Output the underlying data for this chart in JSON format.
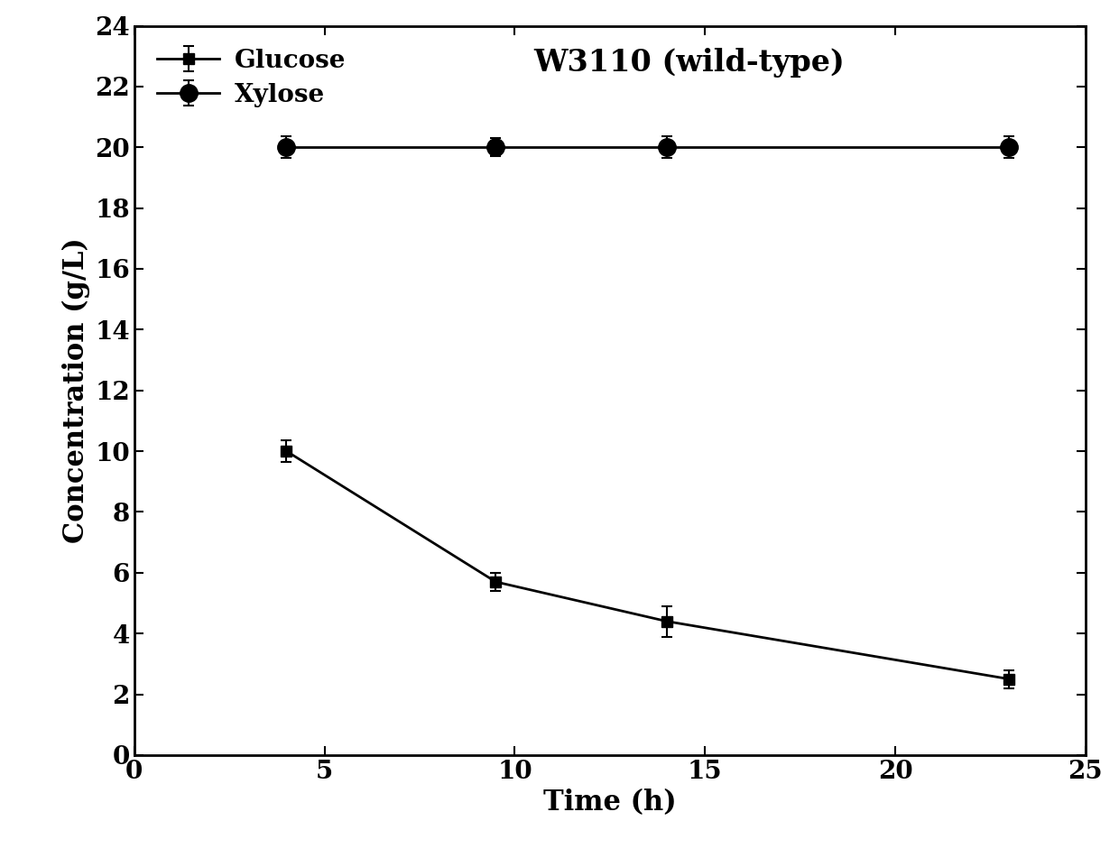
{
  "title": "W3110 (wild-type)",
  "xlabel": "Time (h)",
  "ylabel": "Concentration (g/L)",
  "xlim": [
    0,
    25
  ],
  "ylim": [
    0,
    24
  ],
  "xticks": [
    0,
    5,
    10,
    15,
    20,
    25
  ],
  "yticks": [
    0,
    2,
    4,
    6,
    8,
    10,
    12,
    14,
    16,
    18,
    20,
    22,
    24
  ],
  "glucose": {
    "x": [
      4,
      9.5,
      14,
      23
    ],
    "y": [
      10.0,
      5.7,
      4.4,
      2.5
    ],
    "yerr": [
      0.35,
      0.3,
      0.5,
      0.3
    ],
    "label": "Glucose",
    "marker": "s",
    "color": "#000000",
    "markersize": 9
  },
  "xylose": {
    "x": [
      4,
      9.5,
      14,
      23
    ],
    "y": [
      20.0,
      20.0,
      20.0,
      20.0
    ],
    "yerr": [
      0.35,
      0.3,
      0.35,
      0.35
    ],
    "label": "Xylose",
    "marker": "o",
    "color": "#000000",
    "markersize": 14
  },
  "line_width": 2.0,
  "background_color": "#ffffff",
  "title_fontsize": 24,
  "label_fontsize": 22,
  "tick_fontsize": 20,
  "legend_fontsize": 20,
  "font_family": "serif"
}
